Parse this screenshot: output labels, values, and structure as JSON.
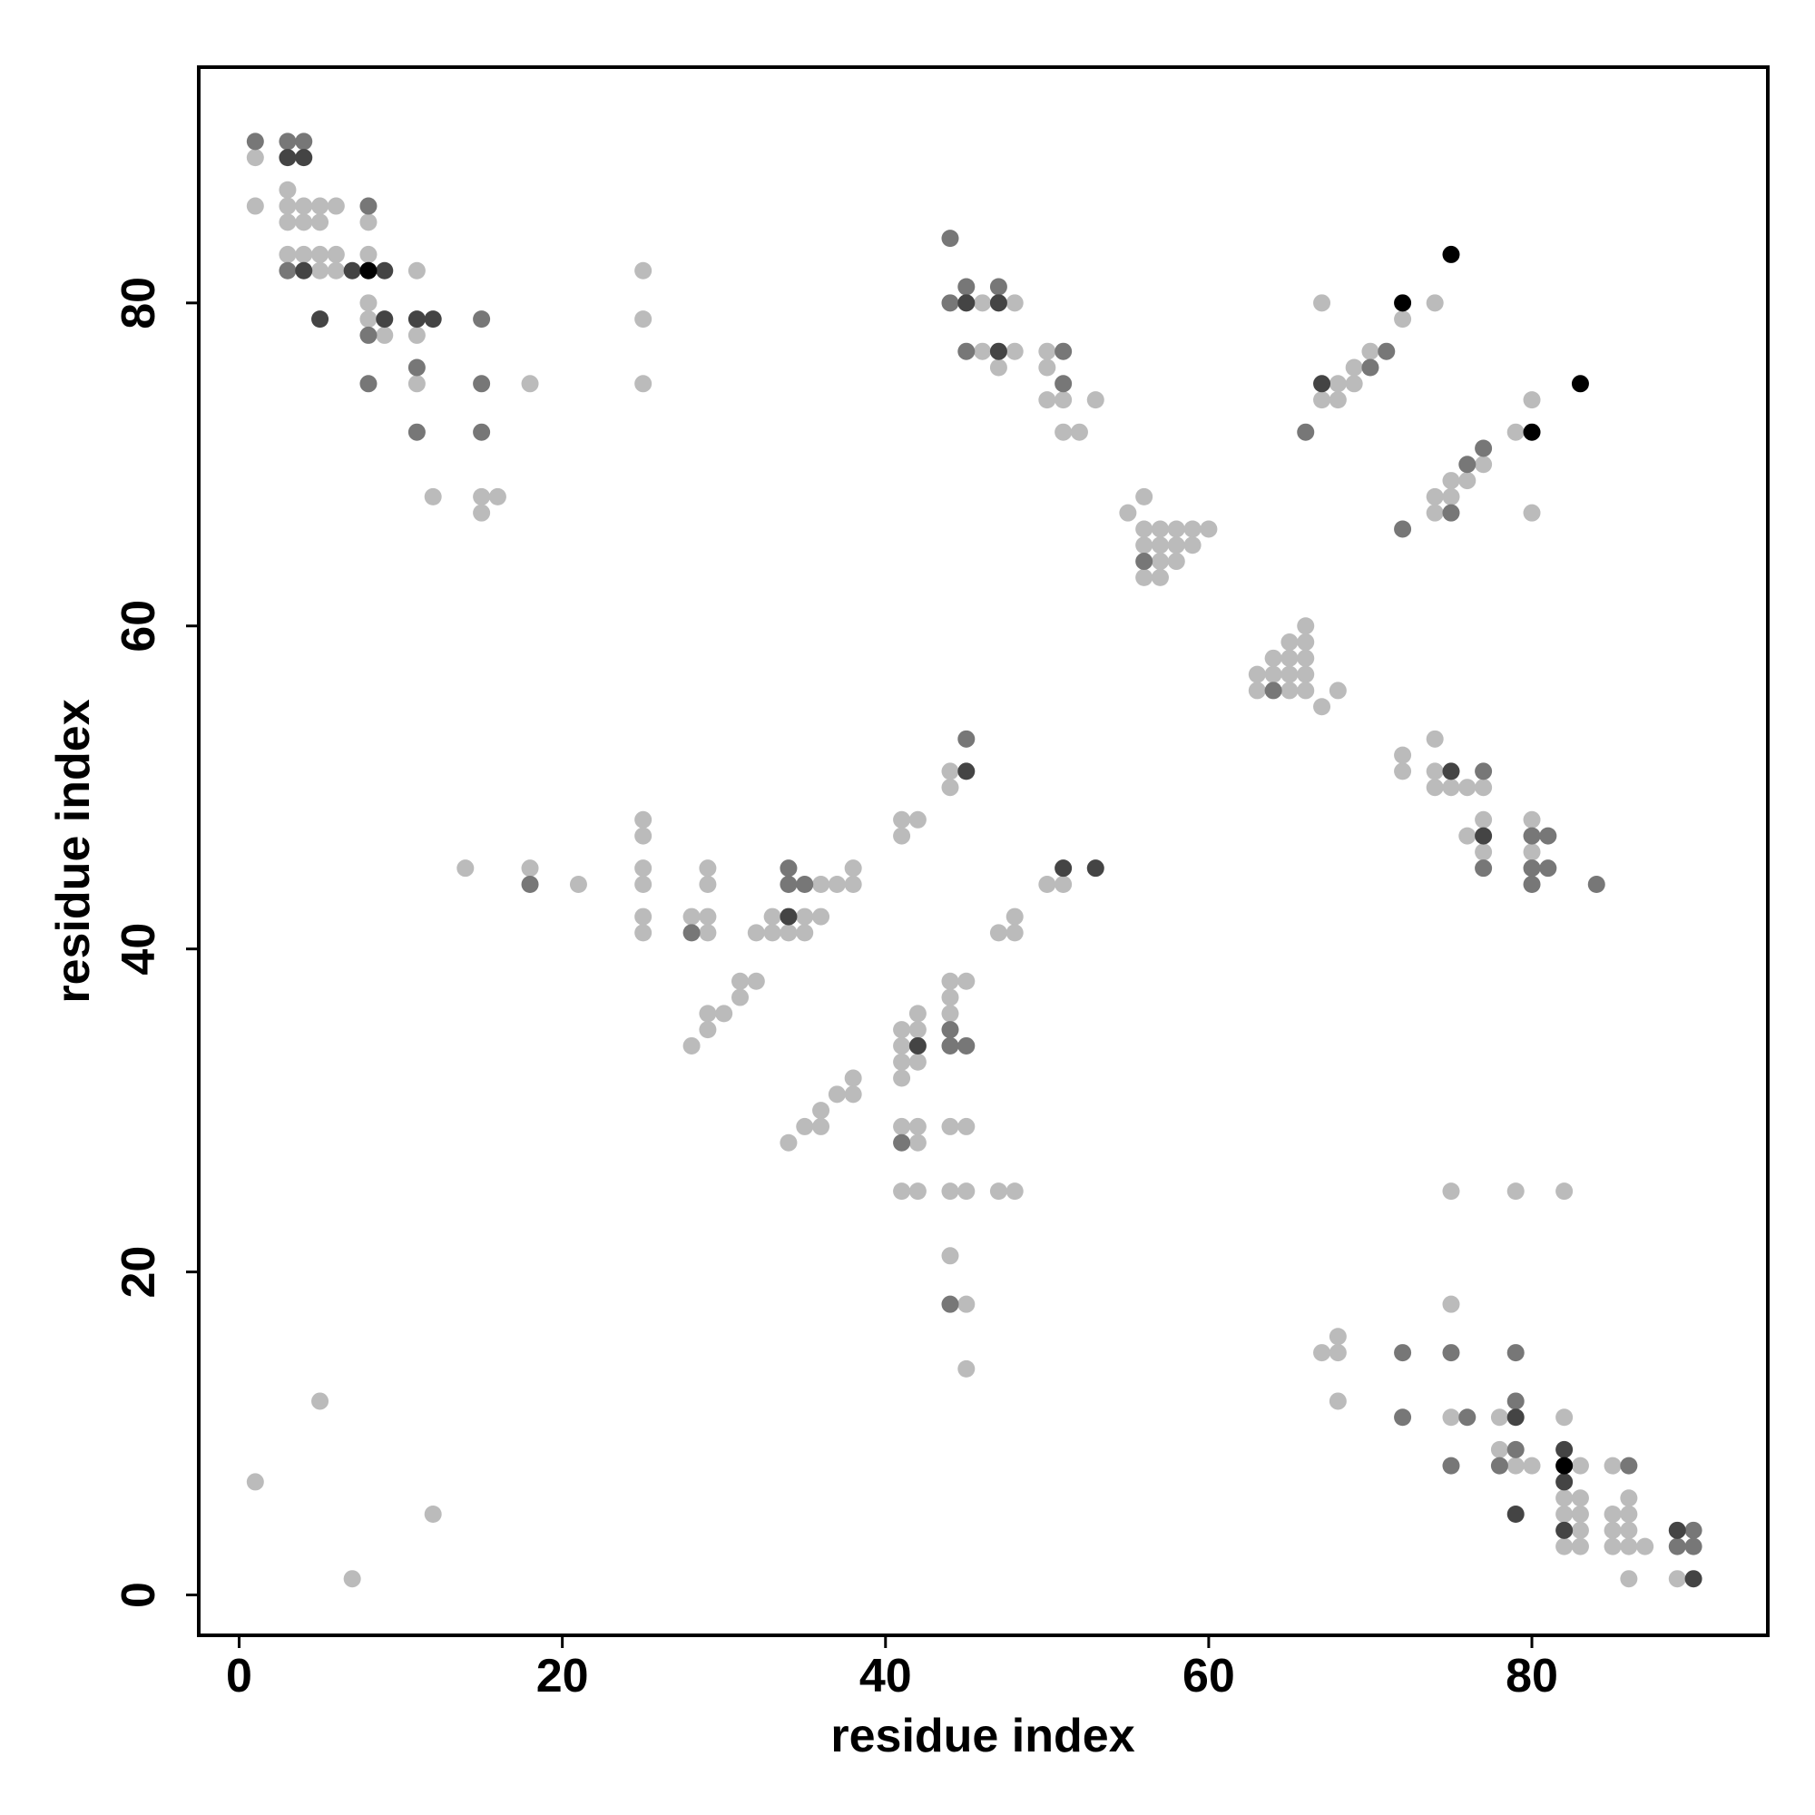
{
  "chart_data": {
    "type": "scatter",
    "xlabel": "residue index",
    "ylabel": "residue index",
    "xlim": [
      -2.5,
      94.6
    ],
    "ylim": [
      -2.5,
      94.6
    ],
    "xticks": [
      0,
      20,
      40,
      60,
      80
    ],
    "yticks": [
      0,
      20,
      40,
      60,
      80
    ],
    "series": [
      {
        "color": "#bbbbbb",
        "x": [
          1,
          1,
          3,
          3,
          4,
          5,
          6,
          3,
          4,
          5,
          8,
          3,
          4,
          5,
          6,
          8,
          5,
          6,
          11,
          25,
          8,
          46,
          48,
          67,
          74,
          8,
          25,
          72,
          9,
          11,
          46,
          48,
          50,
          70,
          47,
          50,
          69,
          11,
          18,
          25,
          68,
          69,
          50,
          51,
          53,
          67,
          68,
          80,
          52,
          51,
          79,
          77,
          75,
          76,
          12,
          15,
          16,
          56,
          74,
          75,
          15,
          55,
          74,
          80,
          56,
          57,
          58,
          59,
          60,
          56,
          57,
          58,
          59,
          57,
          58,
          56,
          57,
          66,
          65,
          66,
          64,
          65,
          66,
          63,
          64,
          65,
          66,
          63,
          65,
          66,
          68,
          67,
          74,
          72,
          44,
          72,
          74,
          44,
          74,
          75,
          76,
          77,
          25,
          41,
          42,
          77,
          80,
          25,
          41,
          76,
          77,
          80,
          14,
          18,
          25,
          29,
          38,
          21,
          25,
          29,
          36,
          37,
          38,
          50,
          51,
          25,
          28,
          29,
          33,
          35,
          36,
          48,
          25,
          29,
          32,
          33,
          34,
          35,
          47,
          48,
          31,
          32,
          44,
          45,
          31,
          44,
          29,
          30,
          42,
          44,
          29,
          41,
          42,
          28,
          41,
          41,
          42,
          38,
          41,
          37,
          38,
          36,
          35,
          36,
          41,
          42,
          44,
          45,
          34,
          42,
          41,
          42,
          44,
          45,
          47,
          48,
          75,
          79,
          82,
          44,
          45,
          75,
          68,
          67,
          68,
          45,
          5,
          68,
          75,
          78,
          82,
          78,
          79,
          80,
          83,
          85,
          1,
          82,
          83,
          86,
          12,
          82,
          83,
          85,
          86,
          83,
          85,
          86,
          82,
          83,
          85,
          86,
          87,
          7,
          86,
          89
        ],
        "values": [
          89,
          86,
          87,
          86,
          86,
          86,
          86,
          85,
          85,
          85,
          85,
          83,
          83,
          83,
          83,
          83,
          82,
          82,
          82,
          82,
          80,
          80,
          80,
          80,
          80,
          79,
          79,
          79,
          78,
          78,
          77,
          77,
          77,
          77,
          76,
          76,
          76,
          75,
          75,
          75,
          75,
          75,
          74,
          74,
          74,
          74,
          74,
          74,
          72,
          72,
          72,
          70,
          69,
          69,
          68,
          68,
          68,
          68,
          68,
          68,
          67,
          67,
          67,
          67,
          66,
          66,
          66,
          66,
          66,
          65,
          65,
          65,
          65,
          64,
          64,
          63,
          63,
          60,
          59,
          59,
          58,
          58,
          58,
          57,
          57,
          57,
          57,
          56,
          56,
          56,
          56,
          55,
          53,
          52,
          51,
          51,
          51,
          50,
          50,
          50,
          50,
          50,
          48,
          48,
          48,
          48,
          48,
          47,
          47,
          47,
          46,
          46,
          45,
          45,
          45,
          45,
          45,
          44,
          44,
          44,
          44,
          44,
          44,
          44,
          44,
          42,
          42,
          42,
          42,
          42,
          42,
          42,
          41,
          41,
          41,
          41,
          41,
          41,
          41,
          41,
          38,
          38,
          38,
          38,
          37,
          37,
          36,
          36,
          36,
          36,
          35,
          35,
          35,
          34,
          34,
          33,
          33,
          32,
          32,
          31,
          31,
          30,
          29,
          29,
          29,
          29,
          29,
          29,
          28,
          28,
          25,
          25,
          25,
          25,
          25,
          25,
          25,
          25,
          25,
          21,
          18,
          18,
          16,
          15,
          15,
          14,
          12,
          12,
          11,
          11,
          11,
          9,
          8,
          8,
          8,
          8,
          7,
          6,
          6,
          6,
          5,
          5,
          5,
          5,
          5,
          4,
          4,
          4,
          3,
          3,
          3,
          3,
          3,
          1,
          1,
          1
        ]
      },
      {
        "color": "#777777",
        "x": [
          1,
          3,
          4,
          8,
          44,
          3,
          45,
          47,
          44,
          15,
          8,
          45,
          51,
          71,
          11,
          70,
          8,
          15,
          51,
          11,
          15,
          66,
          77,
          76,
          75,
          72,
          56,
          64,
          45,
          77,
          80,
          81,
          34,
          77,
          80,
          81,
          18,
          34,
          35,
          80,
          84,
          28,
          44,
          44,
          45,
          41,
          44,
          72,
          75,
          79,
          79,
          72,
          76,
          79,
          75,
          78,
          86,
          90,
          89,
          90
        ],
        "values": [
          90,
          90,
          90,
          86,
          84,
          82,
          81,
          81,
          80,
          79,
          78,
          77,
          77,
          77,
          76,
          76,
          75,
          75,
          75,
          72,
          72,
          72,
          71,
          70,
          67,
          66,
          64,
          56,
          53,
          51,
          47,
          47,
          45,
          45,
          45,
          45,
          44,
          44,
          44,
          44,
          44,
          41,
          35,
          34,
          34,
          28,
          18,
          15,
          15,
          15,
          12,
          11,
          11,
          9,
          8,
          8,
          8,
          4,
          3,
          3
        ]
      },
      {
        "color": "#444444",
        "x": [
          3,
          4,
          4,
          7,
          9,
          45,
          47,
          5,
          9,
          11,
          12,
          47,
          67,
          45,
          75,
          77,
          51,
          53,
          34,
          42,
          79,
          82,
          82,
          79,
          82,
          89,
          90
        ],
        "values": [
          89,
          89,
          82,
          82,
          82,
          80,
          80,
          79,
          79,
          79,
          79,
          77,
          75,
          51,
          51,
          47,
          45,
          45,
          42,
          34,
          11,
          9,
          7,
          5,
          4,
          4,
          1
        ]
      },
      {
        "color": "#000000",
        "x": [
          75,
          72,
          8,
          83,
          80,
          82
        ],
        "values": [
          83,
          80,
          82,
          75,
          72,
          8
        ]
      }
    ]
  }
}
